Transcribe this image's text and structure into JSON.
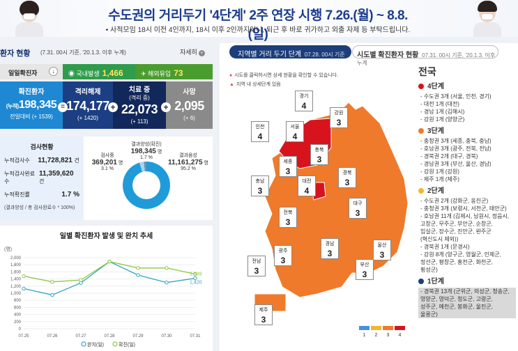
{
  "banner": {
    "title": "수도권의 거리두기 '4단계' 2주 연장 시행 7.26.(월) ~ 8.8.(일)",
    "subtitle": "• 사적모임 18시 이전 4인까지, 18시 이후 2인까지이니, 퇴근 후 바로 귀가하고 외출 자제 등 부탁드립니다."
  },
  "left": {
    "title": "환자 현황",
    "date": "(7.31. 00시 기준, '20.1.3. 이후 누계)",
    "detail": "자세히",
    "detail_icon": "+",
    "daily": {
      "label": "일일확진자",
      "arrow": "↓",
      "domestic_label": "국내발생",
      "domestic": "1,466",
      "overseas_label": "해외유입",
      "overseas": "73"
    },
    "confirmed": {
      "label": "확진환자",
      "prefix": "(누적)",
      "value": "198,345",
      "delta": "전일대비 (+ 1539)"
    },
    "released": {
      "label": "격리해제",
      "value": "174,177",
      "delta": "(+ 1420)"
    },
    "treating": {
      "label": "치료 중",
      "sublabel": "(격리 중)",
      "value": "22,073",
      "delta": "(+ 113)"
    },
    "deaths": {
      "label": "사망",
      "value": "2,095",
      "delta": "(+ 6)"
    },
    "ops": {
      "eq": "=",
      "plus": "+"
    },
    "tests": {
      "title": "검사현황",
      "rows": [
        {
          "label": "누적검사수",
          "value": "11,728,821",
          "unit": "건"
        },
        {
          "label": "누적검사완료수",
          "value": "11,359,620",
          "unit": "건"
        },
        {
          "label": "누적확진률",
          "value": "1.7 %"
        }
      ],
      "note": "(결과양성 / 총 검사완료수 * 100%)",
      "positive": {
        "label": "결과양성(확진)",
        "value": "198,345",
        "unit": "명",
        "pct": "1.7 %"
      },
      "testing": {
        "label": "검사중",
        "value": "369,201",
        "unit": "명",
        "pct": "3.1 %"
      },
      "negative": {
        "label": "결과음성",
        "value": "11,161,275",
        "unit": "명",
        "pct": "95.2 %"
      }
    },
    "chart_title": "일별 확진환자 발생 및 완치 추세"
  },
  "chart_data": {
    "type": "line",
    "title": "일별 확진환자 발생 및 완치 추세",
    "ylabel": "(명)",
    "categories": [
      "07.25",
      "07.26",
      "07.27",
      "07.28",
      "07.29",
      "07.30",
      "07.31"
    ],
    "yticks": [
      "0",
      "200",
      "400",
      "600",
      "800",
      "1,000",
      "1,200",
      "1,400",
      "1,600",
      "1,800",
      "2,000"
    ],
    "ylim": [
      0,
      2000
    ],
    "series": [
      {
        "name": "완치(일)",
        "color": "#2fa4c9",
        "values": [
          1130,
          950,
          1290,
          1890,
          1510,
          1300,
          1420
        ]
      },
      {
        "name": "확진(일)",
        "color": "#8dc63f",
        "values": [
          1480,
          1320,
          1370,
          1890,
          1710,
          1710,
          1539
        ]
      }
    ],
    "end_labels": [
      "1,539",
      "1,420"
    ]
  },
  "right": {
    "tab_active": "지역별 거리 두기 단계",
    "tab_active_date": "07.28. 00시 기준",
    "tab_other": "시도별 확진환자 현황",
    "tab_other_date": "07.31. 00시 기준, '20.1.3. 이후 누계",
    "notes": [
      "시도를 클릭하시면 상세 현황을 확인할 수 있습니다.",
      "지역 내 상세단계 있음"
    ],
    "legend": [
      {
        "label": "1",
        "color": "#4a90d9"
      },
      {
        "label": "2",
        "color": "#f2b632"
      },
      {
        "label": "3",
        "color": "#ef7a2b"
      },
      {
        "label": "4",
        "color": "#d7141e"
      }
    ],
    "regions": [
      {
        "name": "경기",
        "level": "4"
      },
      {
        "name": "인천",
        "level": "4"
      },
      {
        "name": "서울",
        "level": "4"
      },
      {
        "name": "강원",
        "level": "3"
      },
      {
        "name": "세종",
        "level": "3"
      },
      {
        "name": "충북",
        "level": "3"
      },
      {
        "name": "충남",
        "level": "3"
      },
      {
        "name": "대전",
        "level": "4"
      },
      {
        "name": "경북",
        "level": "3"
      },
      {
        "name": "전북",
        "level": "3"
      },
      {
        "name": "대구",
        "level": "3"
      },
      {
        "name": "경남",
        "level": "3"
      },
      {
        "name": "광주",
        "level": "3"
      },
      {
        "name": "울산",
        "level": "3"
      },
      {
        "name": "전남",
        "level": "3"
      },
      {
        "name": "부산",
        "level": "3"
      },
      {
        "name": "제주",
        "level": "3"
      }
    ],
    "side": {
      "title": "전국",
      "l4": {
        "head": "4단계",
        "items": [
          "- 수도권 3개 (서울, 인천, 경기)",
          "- 대전 1개 (대전)",
          "- 경남 1개 (김해시)",
          "- 강원 1개 (양양군)"
        ]
      },
      "l3": {
        "head": "3단계",
        "items": [
          "- 충청권 3개 (세종, 충북, 충남)",
          "- 호남권 3개 (광주, 전북, 전남)",
          "- 경북권 2개 (대구, 경북)",
          "- 경남권 3개 (부산, 울산, 경남)",
          "- 강원 1개 (강원)",
          "- 제주 1개 (제주)"
        ]
      },
      "l2": {
        "head": "2단계",
        "items": [
          "- 수도권 2개 (강화군, 옹진군)",
          "- 충청권 3개 (보령시, 서천군, 태안군)",
          "- 호남권 11개 (김제시, 남원시, 정읍시,",
          "  고창군, 무주군, 부안군, 순창군,",
          "  임실군, 장수군, 진안군, 완주군",
          "  (혁신도시 제외))",
          "- 경북권 1개 (문경시)",
          "- 강원 8개 (양구군, 영월군, 인제군,",
          "  정선군, 평창군, 홍천군, 화천군,",
          "  횡성군)"
        ]
      },
      "l1": {
        "head": "1단계",
        "items": [
          "- 경북권 13개 (군위군, 의성군, 청송군,",
          "  영양군, 영덕군, 청도군, 고령군,",
          "  성주군, 예천군, 봉화군, 울진군,",
          "  울릉군)"
        ]
      }
    }
  }
}
